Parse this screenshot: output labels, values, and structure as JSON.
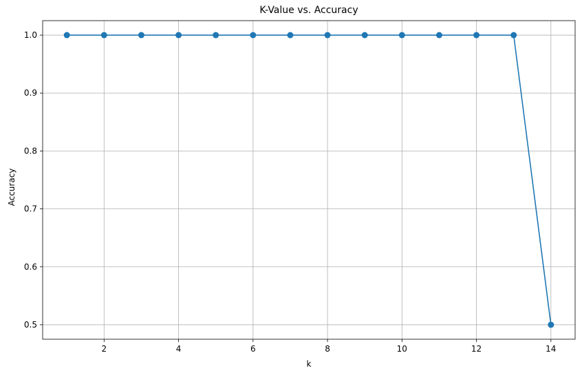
{
  "chart_data": {
    "type": "line",
    "title": "K-Value vs. Accuracy",
    "xlabel": "k",
    "ylabel": "Accuracy",
    "x": [
      1,
      2,
      3,
      4,
      5,
      6,
      7,
      8,
      9,
      10,
      11,
      12,
      13,
      14
    ],
    "series": [
      {
        "values": [
          1.0,
          1.0,
          1.0,
          1.0,
          1.0,
          1.0,
          1.0,
          1.0,
          1.0,
          1.0,
          1.0,
          1.0,
          1.0,
          0.5
        ],
        "color": "#1f77b4",
        "marker": "circle"
      }
    ],
    "xlim": [
      0.35,
      14.65
    ],
    "ylim": [
      0.475,
      1.025
    ],
    "xticks": [
      2,
      4,
      6,
      8,
      10,
      12,
      14
    ],
    "xtick_labels": [
      "2",
      "4",
      "6",
      "8",
      "10",
      "12",
      "14"
    ],
    "yticks": [
      0.5,
      0.6,
      0.7,
      0.8,
      0.9,
      1.0
    ],
    "ytick_labels": [
      "0.5",
      "0.6",
      "0.7",
      "0.8",
      "0.9",
      "1.0"
    ],
    "grid": true,
    "grid_color": "#b0b0b0"
  }
}
